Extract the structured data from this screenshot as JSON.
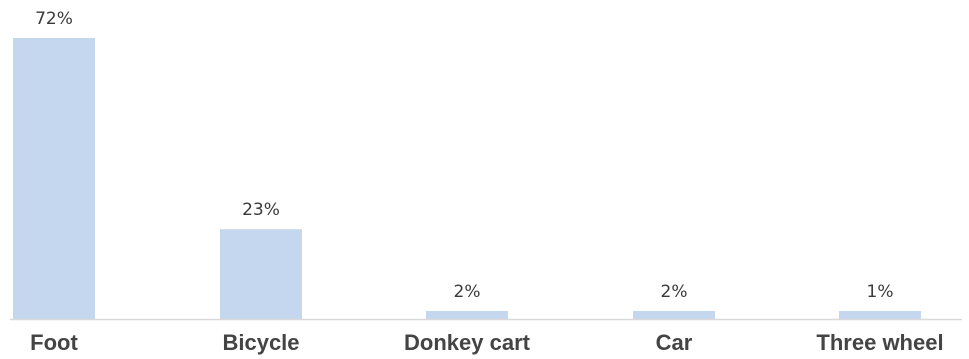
{
  "chart_data": {
    "type": "bar",
    "categories": [
      "Foot",
      "Bicycle",
      "Donkey cart",
      "Car",
      "Three wheel"
    ],
    "values": [
      72,
      23,
      2,
      2,
      1
    ],
    "value_labels": [
      "72%",
      "23%",
      "2%",
      "2%",
      "1%"
    ],
    "title": "",
    "xlabel": "",
    "ylabel": "",
    "ylim": [
      0,
      72
    ],
    "grid": false,
    "legend": "none",
    "bar_color": "#c5d7ef",
    "axis_color": "#d9d9d9"
  }
}
